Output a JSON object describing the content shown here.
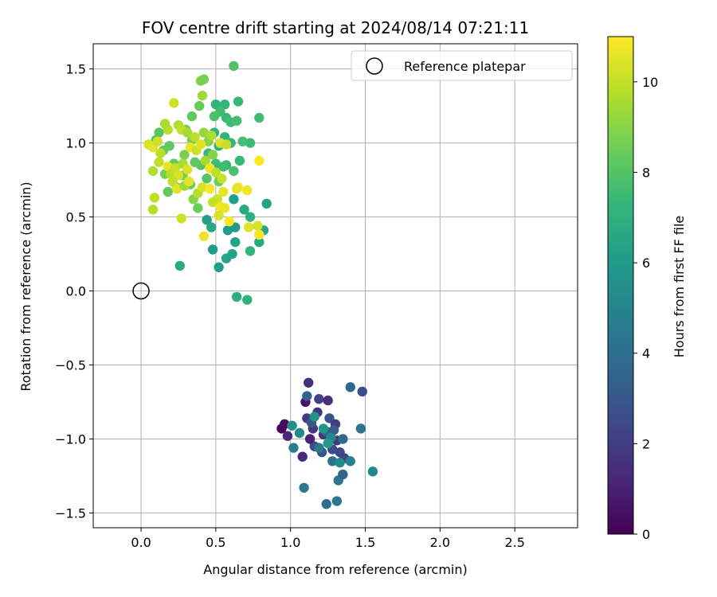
{
  "chart_data": {
    "type": "scatter",
    "title": "FOV centre drift starting at 2024/08/14 07:21:11",
    "xlabel": "Angular distance from reference (arcmin)",
    "ylabel": "Rotation from reference (arcmin)",
    "xlim": [
      -0.32,
      2.92
    ],
    "ylim": [
      -1.6,
      1.67
    ],
    "xticks": [
      0.0,
      0.5,
      1.0,
      1.5,
      2.0,
      2.5
    ],
    "xtick_labels": [
      "0.0",
      "0.5",
      "1.0",
      "1.5",
      "2.0",
      "2.5"
    ],
    "yticks": [
      -1.5,
      -1.0,
      -0.5,
      0.0,
      0.5,
      1.0,
      1.5
    ],
    "ytick_labels": [
      "−1.5",
      "−1.0",
      "−0.5",
      "0.0",
      "0.5",
      "1.0",
      "1.5"
    ],
    "grid": true,
    "legend": {
      "placement": "top-right",
      "entries": [
        "Reference platepar"
      ]
    },
    "reference_point": {
      "x": 0.0,
      "y": 0.0,
      "marker": "hollow-circle"
    },
    "colorbar": {
      "label": "Hours from first FF file",
      "range": [
        0,
        11
      ],
      "ticks": [
        0,
        2,
        4,
        6,
        8,
        10
      ],
      "tick_labels": [
        "0",
        "2",
        "4",
        "6",
        "8",
        "10"
      ],
      "colormap": "viridis"
    },
    "colormap_stops": [
      "#440154",
      "#482878",
      "#3e4989",
      "#31688e",
      "#26828e",
      "#1f9e89",
      "#35b779",
      "#6ece58",
      "#b5de2b",
      "#fde725"
    ],
    "points": [
      {
        "x": 0.94,
        "y": -0.93,
        "h": 0.1
      },
      {
        "x": 0.96,
        "y": -0.9,
        "h": 0.4
      },
      {
        "x": 0.98,
        "y": -0.98,
        "h": 1.2
      },
      {
        "x": 1.1,
        "y": -0.75,
        "h": 0.6
      },
      {
        "x": 1.12,
        "y": -0.62,
        "h": 1.5
      },
      {
        "x": 1.08,
        "y": -1.12,
        "h": 1.3
      },
      {
        "x": 1.11,
        "y": -0.86,
        "h": 2.0
      },
      {
        "x": 1.15,
        "y": -0.93,
        "h": 1.8
      },
      {
        "x": 1.18,
        "y": -0.82,
        "h": 1.6
      },
      {
        "x": 1.19,
        "y": -0.73,
        "h": 2.2
      },
      {
        "x": 1.22,
        "y": -0.97,
        "h": 1.7
      },
      {
        "x": 1.25,
        "y": -0.74,
        "h": 1.4
      },
      {
        "x": 1.26,
        "y": -0.86,
        "h": 2.8
      },
      {
        "x": 1.28,
        "y": -1.07,
        "h": 2.5
      },
      {
        "x": 1.3,
        "y": -0.9,
        "h": 2.1
      },
      {
        "x": 1.31,
        "y": -1.01,
        "h": 1.9
      },
      {
        "x": 1.33,
        "y": -1.09,
        "h": 2.4
      },
      {
        "x": 1.36,
        "y": -1.13,
        "h": 2.3
      },
      {
        "x": 1.16,
        "y": -1.05,
        "h": 2.6
      },
      {
        "x": 1.21,
        "y": -1.09,
        "h": 2.9
      },
      {
        "x": 1.13,
        "y": -1.0,
        "h": 1.1
      },
      {
        "x": 1.11,
        "y": -0.71,
        "h": 3.4
      },
      {
        "x": 1.14,
        "y": -0.89,
        "h": 3.0
      },
      {
        "x": 1.24,
        "y": -0.95,
        "h": 3.6
      },
      {
        "x": 1.29,
        "y": -0.94,
        "h": 3.2
      },
      {
        "x": 1.35,
        "y": -1.0,
        "h": 3.8
      },
      {
        "x": 1.4,
        "y": -0.65,
        "h": 3.7
      },
      {
        "x": 1.48,
        "y": -0.68,
        "h": 2.7
      },
      {
        "x": 1.47,
        "y": -0.93,
        "h": 4.2
      },
      {
        "x": 1.55,
        "y": -1.22,
        "h": 5.0
      },
      {
        "x": 1.31,
        "y": -1.42,
        "h": 4.5
      },
      {
        "x": 1.24,
        "y": -1.44,
        "h": 3.9
      },
      {
        "x": 1.32,
        "y": -1.28,
        "h": 4.3
      },
      {
        "x": 1.35,
        "y": -1.24,
        "h": 3.5
      },
      {
        "x": 1.09,
        "y": -1.33,
        "h": 4.6
      },
      {
        "x": 1.4,
        "y": -1.15,
        "h": 4.8
      },
      {
        "x": 1.28,
        "y": -1.15,
        "h": 4.1
      },
      {
        "x": 1.19,
        "y": -1.06,
        "h": 4.4
      },
      {
        "x": 1.02,
        "y": -1.06,
        "h": 4.7
      },
      {
        "x": 1.06,
        "y": -0.96,
        "h": 5.2
      },
      {
        "x": 1.01,
        "y": -0.91,
        "h": 5.4
      },
      {
        "x": 1.16,
        "y": -0.85,
        "h": 5.6
      },
      {
        "x": 1.22,
        "y": -0.93,
        "h": 5.8
      },
      {
        "x": 1.27,
        "y": -0.99,
        "h": 5.1
      },
      {
        "x": 1.33,
        "y": -1.16,
        "h": 5.3
      },
      {
        "x": 1.25,
        "y": -1.03,
        "h": 5.9
      },
      {
        "x": 0.26,
        "y": 0.17,
        "h": 6.8
      },
      {
        "x": 0.64,
        "y": -0.04,
        "h": 6.9
      },
      {
        "x": 0.71,
        "y": -0.06,
        "h": 7.1
      },
      {
        "x": 0.52,
        "y": 0.16,
        "h": 6.2
      },
      {
        "x": 0.48,
        "y": 0.28,
        "h": 6.0
      },
      {
        "x": 0.57,
        "y": 0.22,
        "h": 6.5
      },
      {
        "x": 0.61,
        "y": 0.25,
        "h": 6.3
      },
      {
        "x": 0.63,
        "y": 0.33,
        "h": 6.4
      },
      {
        "x": 0.58,
        "y": 0.41,
        "h": 6.1
      },
      {
        "x": 0.44,
        "y": 0.48,
        "h": 6.2
      },
      {
        "x": 0.47,
        "y": 0.43,
        "h": 6.6
      },
      {
        "x": 0.63,
        "y": 0.43,
        "h": 6.0
      },
      {
        "x": 0.62,
        "y": 0.62,
        "h": 6.1
      },
      {
        "x": 0.69,
        "y": 0.55,
        "h": 6.7
      },
      {
        "x": 0.73,
        "y": 0.5,
        "h": 7.0
      },
      {
        "x": 0.82,
        "y": 0.41,
        "h": 6.5
      },
      {
        "x": 0.84,
        "y": 0.59,
        "h": 6.3
      },
      {
        "x": 0.79,
        "y": 0.33,
        "h": 6.6
      },
      {
        "x": 0.73,
        "y": 0.27,
        "h": 7.2
      },
      {
        "x": 0.66,
        "y": 0.88,
        "h": 7.4
      },
      {
        "x": 0.57,
        "y": 0.85,
        "h": 7.3
      },
      {
        "x": 0.62,
        "y": 0.81,
        "h": 7.8
      },
      {
        "x": 0.68,
        "y": 1.01,
        "h": 7.7
      },
      {
        "x": 0.73,
        "y": 1.0,
        "h": 7.5
      },
      {
        "x": 0.79,
        "y": 1.17,
        "h": 7.6
      },
      {
        "x": 0.65,
        "y": 1.28,
        "h": 7.4
      },
      {
        "x": 0.62,
        "y": 1.52,
        "h": 7.9
      },
      {
        "x": 0.56,
        "y": 1.26,
        "h": 7.3
      },
      {
        "x": 0.5,
        "y": 1.26,
        "h": 7.2
      },
      {
        "x": 0.53,
        "y": 1.21,
        "h": 7.6
      },
      {
        "x": 0.57,
        "y": 1.17,
        "h": 7.4
      },
      {
        "x": 0.6,
        "y": 1.14,
        "h": 7.5
      },
      {
        "x": 0.64,
        "y": 1.15,
        "h": 7.7
      },
      {
        "x": 0.49,
        "y": 1.18,
        "h": 7.8
      },
      {
        "x": 0.56,
        "y": 1.04,
        "h": 7.1
      },
      {
        "x": 0.49,
        "y": 1.07,
        "h": 7.3
      },
      {
        "x": 0.6,
        "y": 1.0,
        "h": 7.2
      },
      {
        "x": 0.52,
        "y": 0.98,
        "h": 7.0
      },
      {
        "x": 0.45,
        "y": 0.93,
        "h": 7.4
      },
      {
        "x": 0.5,
        "y": 0.86,
        "h": 7.5
      },
      {
        "x": 0.55,
        "y": 0.84,
        "h": 7.6
      },
      {
        "x": 0.39,
        "y": 1.25,
        "h": 8.4
      },
      {
        "x": 0.42,
        "y": 1.43,
        "h": 8.6
      },
      {
        "x": 0.4,
        "y": 1.42,
        "h": 8.8
      },
      {
        "x": 0.34,
        "y": 1.18,
        "h": 8.3
      },
      {
        "x": 0.3,
        "y": 1.09,
        "h": 8.5
      },
      {
        "x": 0.34,
        "y": 1.02,
        "h": 8.7
      },
      {
        "x": 0.36,
        "y": 0.87,
        "h": 8.2
      },
      {
        "x": 0.4,
        "y": 0.85,
        "h": 8.1
      },
      {
        "x": 0.44,
        "y": 0.76,
        "h": 8.0
      },
      {
        "x": 0.33,
        "y": 0.72,
        "h": 8.4
      },
      {
        "x": 0.28,
        "y": 0.78,
        "h": 8.6
      },
      {
        "x": 0.18,
        "y": 0.67,
        "h": 8.3
      },
      {
        "x": 0.24,
        "y": 0.7,
        "h": 8.8
      },
      {
        "x": 0.38,
        "y": 0.56,
        "h": 8.5
      },
      {
        "x": 0.35,
        "y": 0.62,
        "h": 9.0
      },
      {
        "x": 0.19,
        "y": 0.98,
        "h": 8.2
      },
      {
        "x": 0.12,
        "y": 1.07,
        "h": 8.1
      },
      {
        "x": 0.1,
        "y": 1.02,
        "h": 8.0
      },
      {
        "x": 0.15,
        "y": 0.95,
        "h": 8.4
      },
      {
        "x": 0.16,
        "y": 0.79,
        "h": 8.6
      },
      {
        "x": 0.22,
        "y": 0.86,
        "h": 8.3
      },
      {
        "x": 0.29,
        "y": 0.92,
        "h": 8.7
      },
      {
        "x": 0.45,
        "y": 1.01,
        "h": 9.0
      },
      {
        "x": 0.48,
        "y": 0.92,
        "h": 8.9
      },
      {
        "x": 0.52,
        "y": 0.74,
        "h": 8.5
      },
      {
        "x": 0.41,
        "y": 1.32,
        "h": 9.4
      },
      {
        "x": 0.22,
        "y": 1.27,
        "h": 10.2
      },
      {
        "x": 0.18,
        "y": 1.09,
        "h": 9.8
      },
      {
        "x": 0.16,
        "y": 1.13,
        "h": 9.6
      },
      {
        "x": 0.25,
        "y": 1.12,
        "h": 9.7
      },
      {
        "x": 0.27,
        "y": 1.09,
        "h": 10.0
      },
      {
        "x": 0.31,
        "y": 1.07,
        "h": 9.5
      },
      {
        "x": 0.36,
        "y": 1.04,
        "h": 9.9
      },
      {
        "x": 0.42,
        "y": 1.07,
        "h": 9.3
      },
      {
        "x": 0.47,
        "y": 1.05,
        "h": 9.6
      },
      {
        "x": 0.53,
        "y": 1.0,
        "h": 10.4
      },
      {
        "x": 0.57,
        "y": 0.99,
        "h": 10.1
      },
      {
        "x": 0.05,
        "y": 0.99,
        "h": 10.3
      },
      {
        "x": 0.08,
        "y": 0.97,
        "h": 10.5
      },
      {
        "x": 0.11,
        "y": 1.01,
        "h": 10.2
      },
      {
        "x": 0.13,
        "y": 0.93,
        "h": 9.9
      },
      {
        "x": 0.08,
        "y": 0.81,
        "h": 9.7
      },
      {
        "x": 0.12,
        "y": 0.87,
        "h": 10.0
      },
      {
        "x": 0.18,
        "y": 0.84,
        "h": 10.6
      },
      {
        "x": 0.2,
        "y": 0.79,
        "h": 9.8
      },
      {
        "x": 0.23,
        "y": 0.83,
        "h": 10.1
      },
      {
        "x": 0.25,
        "y": 0.78,
        "h": 10.3
      },
      {
        "x": 0.28,
        "y": 0.86,
        "h": 9.6
      },
      {
        "x": 0.31,
        "y": 0.82,
        "h": 10.4
      },
      {
        "x": 0.33,
        "y": 0.97,
        "h": 10.7
      },
      {
        "x": 0.37,
        "y": 0.95,
        "h": 10.2
      },
      {
        "x": 0.43,
        "y": 0.88,
        "h": 9.5
      },
      {
        "x": 0.46,
        "y": 0.83,
        "h": 10.8
      },
      {
        "x": 0.5,
        "y": 0.8,
        "h": 9.9
      },
      {
        "x": 0.54,
        "y": 0.76,
        "h": 10.1
      },
      {
        "x": 0.21,
        "y": 0.74,
        "h": 10.0
      },
      {
        "x": 0.24,
        "y": 0.69,
        "h": 10.5
      },
      {
        "x": 0.29,
        "y": 0.71,
        "h": 9.4
      },
      {
        "x": 0.32,
        "y": 0.74,
        "h": 10.6
      },
      {
        "x": 0.38,
        "y": 0.66,
        "h": 9.8
      },
      {
        "x": 0.41,
        "y": 0.7,
        "h": 10.3
      },
      {
        "x": 0.46,
        "y": 0.69,
        "h": 10.9
      },
      {
        "x": 0.51,
        "y": 0.62,
        "h": 10.2
      },
      {
        "x": 0.48,
        "y": 0.6,
        "h": 10.0
      },
      {
        "x": 0.53,
        "y": 0.57,
        "h": 10.8
      },
      {
        "x": 0.56,
        "y": 0.56,
        "h": 10.7
      },
      {
        "x": 0.59,
        "y": 0.47,
        "h": 11.0
      },
      {
        "x": 0.52,
        "y": 0.51,
        "h": 10.4
      },
      {
        "x": 0.55,
        "y": 0.67,
        "h": 10.6
      },
      {
        "x": 0.65,
        "y": 0.7,
        "h": 10.9
      },
      {
        "x": 0.71,
        "y": 0.68,
        "h": 10.8
      },
      {
        "x": 0.72,
        "y": 0.43,
        "h": 10.5
      },
      {
        "x": 0.78,
        "y": 0.44,
        "h": 10.3
      },
      {
        "x": 0.79,
        "y": 0.38,
        "h": 10.9
      },
      {
        "x": 0.42,
        "y": 0.37,
        "h": 10.7
      },
      {
        "x": 0.27,
        "y": 0.49,
        "h": 10.2
      },
      {
        "x": 0.09,
        "y": 0.63,
        "h": 10.0
      },
      {
        "x": 0.08,
        "y": 0.55,
        "h": 9.8
      },
      {
        "x": 0.79,
        "y": 0.88,
        "h": 11.0
      },
      {
        "x": 0.64,
        "y": 0.69,
        "h": 10.6
      },
      {
        "x": 0.4,
        "y": 0.99,
        "h": 10.5
      }
    ]
  }
}
